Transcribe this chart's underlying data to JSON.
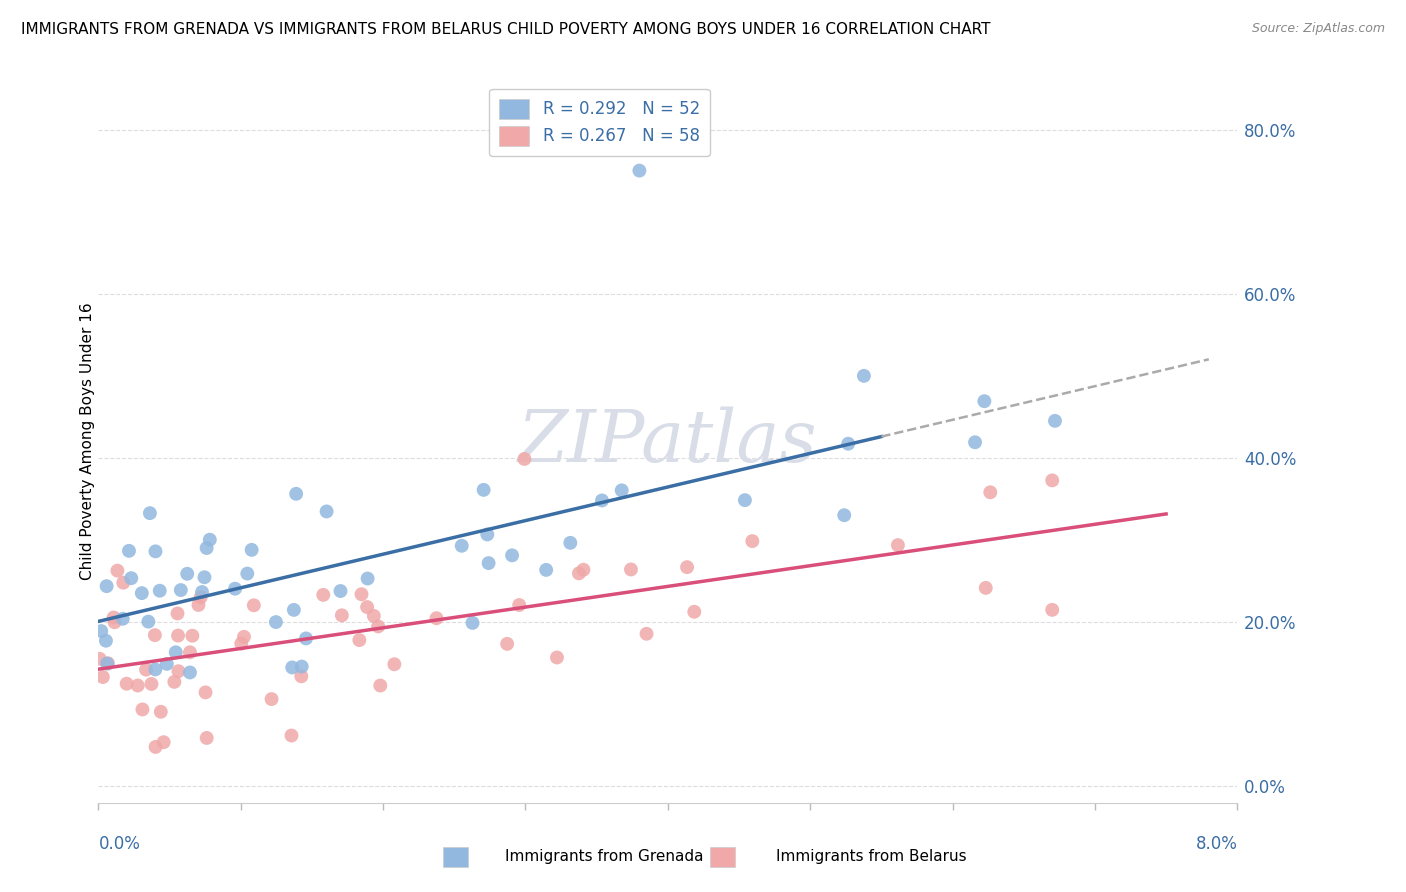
{
  "title": "IMMIGRANTS FROM GRENADA VS IMMIGRANTS FROM BELARUS CHILD POVERTY AMONG BOYS UNDER 16 CORRELATION CHART",
  "source": "Source: ZipAtlas.com",
  "ylabel": "Child Poverty Among Boys Under 16",
  "ytick_vals": [
    0.0,
    0.2,
    0.4,
    0.6,
    0.8
  ],
  "ytick_labels": [
    "0.0%",
    "20.0%",
    "40.0%",
    "60.0%",
    "80.0%"
  ],
  "xlim": [
    0.0,
    0.08
  ],
  "ylim": [
    -0.02,
    0.86
  ],
  "grenada_R": 0.292,
  "grenada_N": 52,
  "belarus_R": 0.267,
  "belarus_N": 58,
  "grenada_color": "#92b8e0",
  "belarus_color": "#f0a8a8",
  "grenada_line_color": "#3a6ea5",
  "belarus_line_color": "#d94f7a",
  "trendline_ext_color": "#aaaaaa",
  "watermark_color": "#d8dde8",
  "legend_label_color": "#3a6ea5",
  "axis_label_color": "#3a6ea5",
  "grid_color": "#dddddd",
  "bottom_spine_color": "#cccccc"
}
